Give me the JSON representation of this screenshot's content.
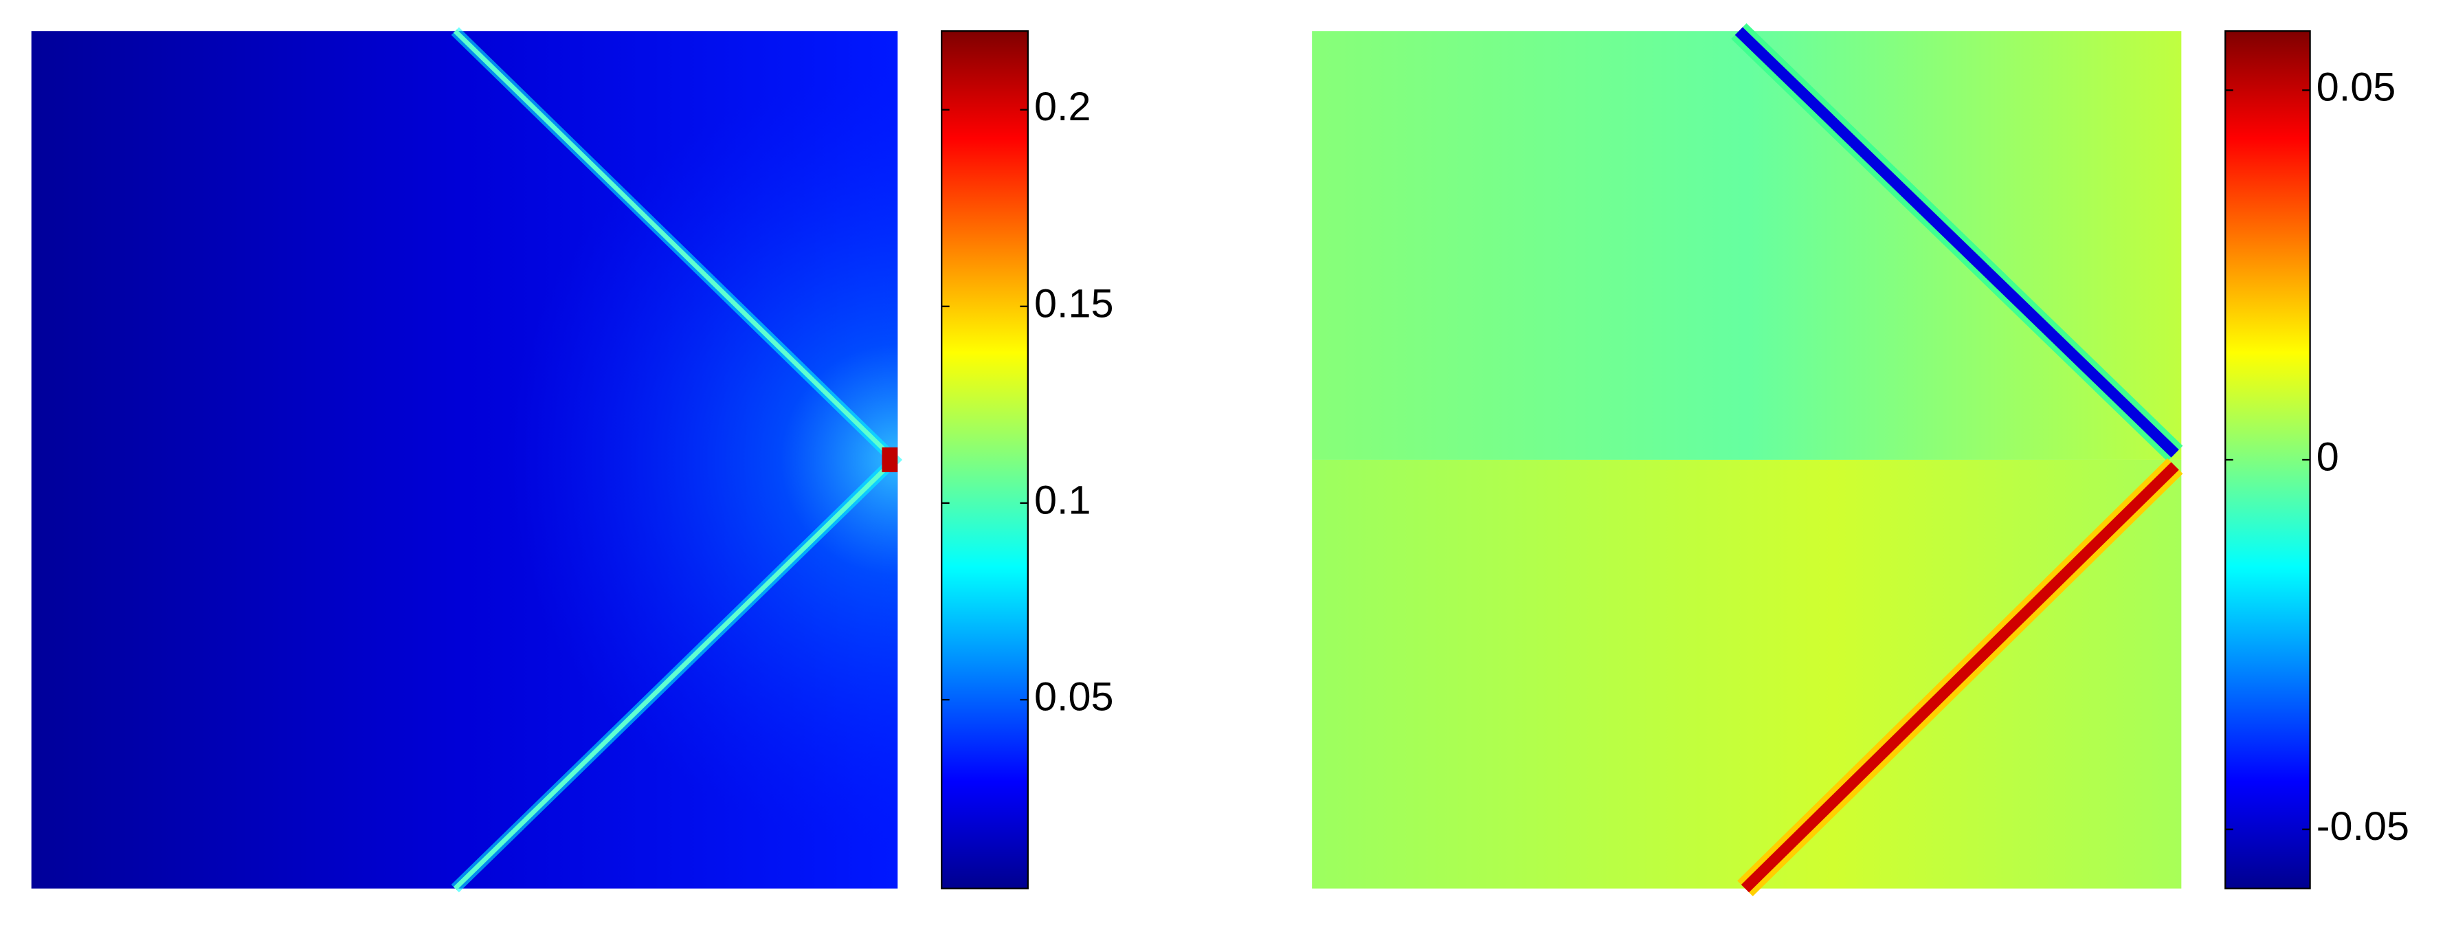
{
  "chart_data": [
    {
      "type": "heatmap",
      "colormap": "jet",
      "clim": [
        0.002,
        0.22
      ],
      "cticks": [
        0.05,
        0.1,
        0.15,
        0.2
      ]
    },
    {
      "type": "heatmap",
      "colormap": "jet",
      "clim": [
        -0.058,
        0.058
      ],
      "cticks": [
        -0.05,
        0,
        0.05
      ]
    }
  ]
}
